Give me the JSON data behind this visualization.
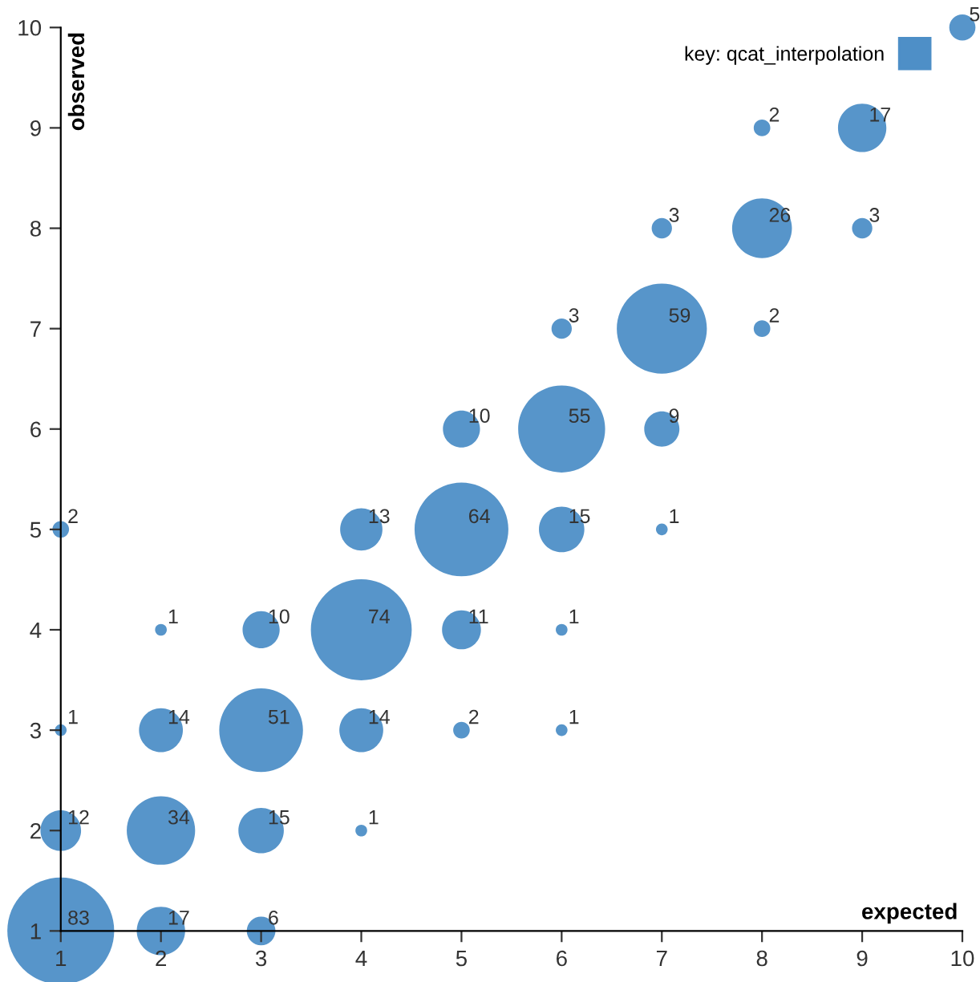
{
  "chart_data": {
    "type": "bubble",
    "xlabel": "expected",
    "ylabel": "observed",
    "xlim": [
      1,
      10
    ],
    "ylim": [
      1,
      10
    ],
    "xticks": [
      1,
      2,
      3,
      4,
      5,
      6,
      7,
      8,
      9,
      10
    ],
    "yticks": [
      1,
      2,
      3,
      4,
      5,
      6,
      7,
      8,
      9,
      10
    ],
    "grid": false,
    "legend": "top right",
    "series": [
      {
        "name": "key: qcat_interpolation",
        "color": "#4e8fc7",
        "x": [
          1,
          2,
          3,
          1,
          2,
          3,
          4,
          1,
          2,
          3,
          4,
          5,
          6,
          2,
          3,
          4,
          5,
          6,
          1,
          4,
          5,
          6,
          7,
          5,
          6,
          7,
          6,
          7,
          8,
          7,
          8,
          9,
          8,
          9,
          10
        ],
        "values": [
          1,
          1,
          1,
          2,
          2,
          2,
          2,
          3,
          3,
          3,
          3,
          3,
          3,
          4,
          4,
          4,
          4,
          4,
          5,
          5,
          5,
          5,
          5,
          6,
          6,
          6,
          7,
          7,
          7,
          8,
          8,
          8,
          9,
          9,
          10
        ],
        "sizes": [
          83,
          17,
          6,
          12,
          34,
          15,
          1,
          1,
          14,
          51,
          14,
          2,
          1,
          1,
          10,
          74,
          11,
          1,
          2,
          13,
          64,
          15,
          1,
          10,
          55,
          9,
          3,
          59,
          2,
          3,
          26,
          3,
          2,
          17,
          5
        ],
        "value_labels": [
          "83",
          "17",
          "6",
          "12",
          "34",
          "15",
          "1",
          "1",
          "14",
          "51",
          "14",
          "2",
          "1",
          "1",
          "10",
          "74",
          "11",
          "1",
          "2",
          "13",
          "64",
          "15",
          "1",
          "10",
          "55",
          "9",
          "3",
          "59",
          "2",
          "3",
          "26",
          "3",
          "2",
          "17",
          "5"
        ]
      }
    ]
  }
}
